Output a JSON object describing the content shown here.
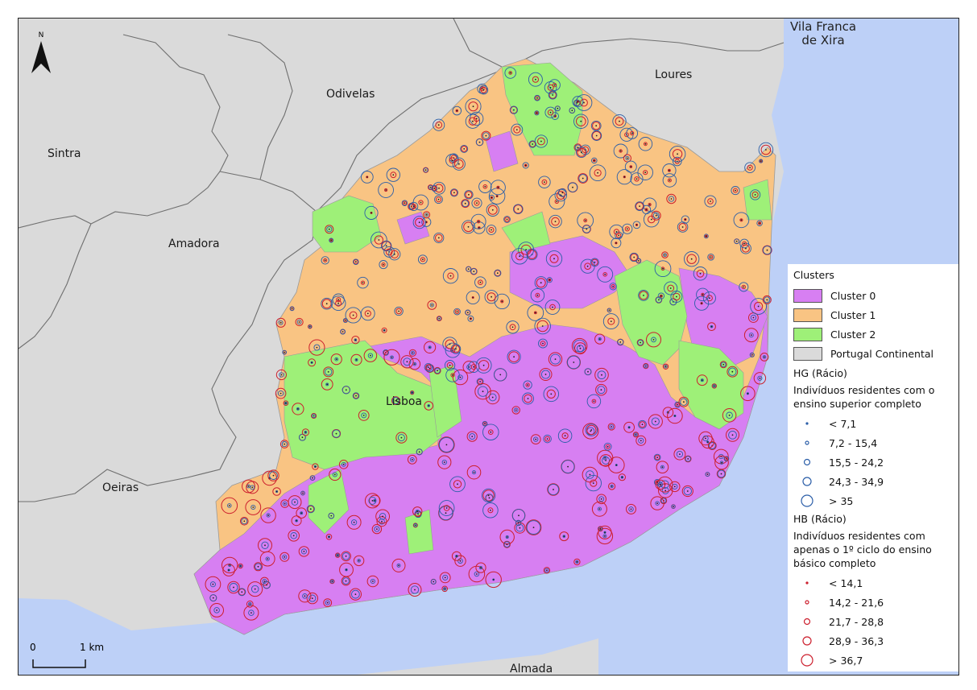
{
  "places": {
    "vila_franca": "Vila Franca\nde Xira",
    "loures": "Loures",
    "odivelas": "Odivelas",
    "sintra": "Sintra",
    "amadora": "Amadora",
    "oeiras": "Oeiras",
    "lisboa": "Lisboa",
    "almada": "Almada"
  },
  "north_label": "N",
  "scale": {
    "zero": "0",
    "km": "1 km"
  },
  "legend": {
    "clusters_title": "Clusters",
    "classes": [
      {
        "label": "Cluster 0",
        "color": "#d77ff2"
      },
      {
        "label": "Cluster 1",
        "color": "#f9c483"
      },
      {
        "label": "Cluster 2",
        "color": "#9ef078"
      },
      {
        "label": "Portugal Continental",
        "color": "#dadada"
      }
    ],
    "hg_title": "HG (Rácio)",
    "hg_desc": "Indivíduos residentes com o ensino superior completo",
    "hg_color": "#2b5ea8",
    "hg_classes": [
      "< 7,1",
      "7,2 - 15,4",
      "15,5 - 24,2",
      "24,3 - 34,9",
      "> 35"
    ],
    "hb_title": "HB (Rácio)",
    "hb_desc": "Indivíduos residentes com apenas o 1º ciclo do ensino básico completo",
    "hb_color": "#cc1f2d",
    "hb_classes": [
      "< 14,1",
      "14,2 - 21,6",
      "21,7 - 28,8",
      "28,9 - 36,3",
      "> 36,7"
    ]
  },
  "colors": {
    "water": "#bdd0f7",
    "land": "#dadada",
    "boundary": "#7a7a7a"
  }
}
